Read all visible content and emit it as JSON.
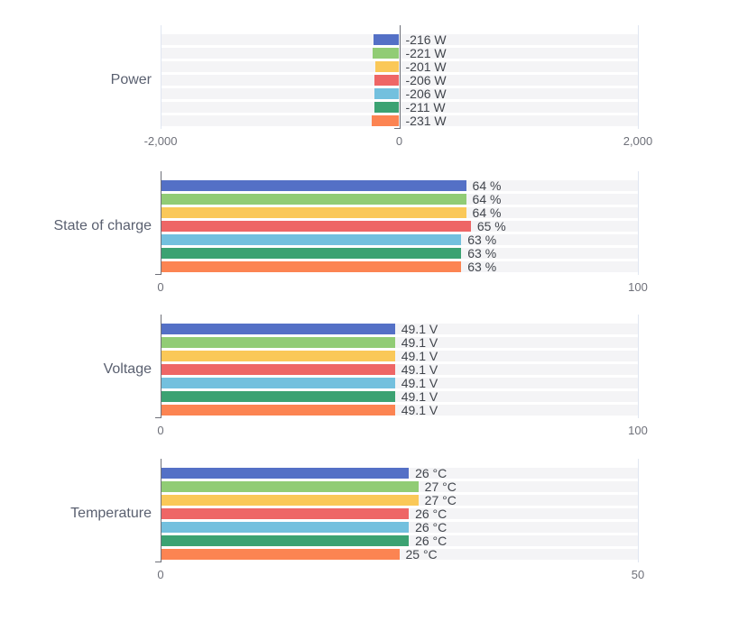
{
  "panel": {
    "background": "#ffffff",
    "band_color": "#f4f4f6",
    "axis_color": "#6e7079",
    "gridline_color": "#e0e6f1",
    "value_label_color": "#41454c",
    "axis_label_color": "#6e7079",
    "title_color": "#5a6070"
  },
  "palette": [
    "#5470c6",
    "#91cc75",
    "#fac858",
    "#ee6666",
    "#73c0de",
    "#3ba272",
    "#fc8452"
  ],
  "chart_data": [
    {
      "type": "bar",
      "orientation": "horizontal",
      "title": "Power",
      "unit": "W",
      "xlim": [
        -2000,
        2000
      ],
      "grid": "edge-lines",
      "legend": "none",
      "xticks": [
        {
          "label": "-2,000",
          "value": -2000
        },
        {
          "label": "0",
          "value": 0
        },
        {
          "label": "2,000",
          "value": 2000
        }
      ],
      "values": [
        -216,
        -221,
        -201,
        -206,
        -206,
        -211,
        -231
      ],
      "labels": [
        "-216 W",
        "-221 W",
        "-201 W",
        "-206 W",
        "-206 W",
        "-211 W",
        "-231 W"
      ]
    },
    {
      "type": "bar",
      "orientation": "horizontal",
      "title": "State of charge",
      "unit": "%",
      "xlim": [
        0,
        100
      ],
      "grid": "edge-lines",
      "legend": "none",
      "xticks": [
        {
          "label": "0",
          "value": 0
        },
        {
          "label": "100",
          "value": 100
        }
      ],
      "values": [
        64,
        64,
        64,
        65,
        63,
        63,
        63
      ],
      "labels": [
        "64 %",
        "64 %",
        "64 %",
        "65 %",
        "63 %",
        "63 %",
        "63 %"
      ]
    },
    {
      "type": "bar",
      "orientation": "horizontal",
      "title": "Voltage",
      "unit": "V",
      "xlim": [
        0,
        100
      ],
      "grid": "edge-lines",
      "legend": "none",
      "xticks": [
        {
          "label": "0",
          "value": 0
        },
        {
          "label": "100",
          "value": 100
        }
      ],
      "values": [
        49.1,
        49.1,
        49.1,
        49.1,
        49.1,
        49.1,
        49.1
      ],
      "labels": [
        "49.1 V",
        "49.1 V",
        "49.1 V",
        "49.1 V",
        "49.1 V",
        "49.1 V",
        "49.1 V"
      ]
    },
    {
      "type": "bar",
      "orientation": "horizontal",
      "title": "Temperature",
      "unit": "°C",
      "xlim": [
        0,
        50
      ],
      "grid": "edge-lines",
      "legend": "none",
      "xticks": [
        {
          "label": "0",
          "value": 0
        },
        {
          "label": "50",
          "value": 50
        }
      ],
      "values": [
        26,
        27,
        27,
        26,
        26,
        26,
        25
      ],
      "labels": [
        "26 °C",
        "27 °C",
        "27 °C",
        "26 °C",
        "26 °C",
        "26 °C",
        "25 °C"
      ]
    }
  ]
}
